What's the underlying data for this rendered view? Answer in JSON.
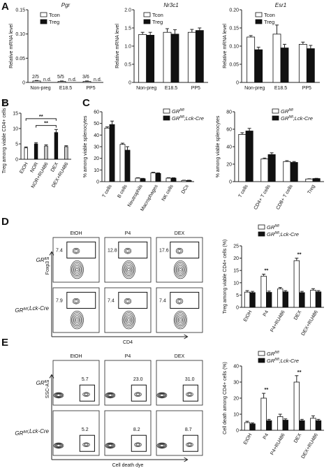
{
  "panels": {
    "A": "A",
    "B": "B",
    "C": "C",
    "D": "D",
    "E": "E"
  },
  "legend": {
    "tcon": "Tcon",
    "treg": "Treg",
    "gr": "GR",
    "gr_sup": "fl/fl",
    "grlck": "GR",
    "grlck_sup": "fl/fl",
    "grlck_suffix": ";Lck-Cre"
  },
  "colors": {
    "white": "#ffffff",
    "black": "#111111",
    "grey": "#aaaaaa",
    "lightgrey": "#c8c8c8"
  },
  "chart_data": [
    {
      "id": "A1",
      "type": "bar",
      "title": "Pgr",
      "ylabel": "Relative mRNA level",
      "ylim": [
        0,
        0.15
      ],
      "yticks": [
        "0",
        "0.05",
        "0.10",
        "0.15"
      ],
      "categories": [
        "Non-preg",
        "E18.5",
        "PP5"
      ],
      "series": [
        {
          "name": "Tcon",
          "values": [
            0.003,
            0.002,
            0.002
          ],
          "err": [
            0.001,
            0.001,
            0.001
          ]
        },
        {
          "name": "Treg",
          "values": [
            0,
            0,
            0
          ],
          "err": [
            0,
            0,
            0
          ]
        }
      ],
      "annotations": [
        "2/5",
        "5/5",
        "3/6",
        "n.d.",
        "n.d.",
        "n.d."
      ]
    },
    {
      "id": "A2",
      "type": "bar",
      "title": "Nr3c1",
      "ylabel": "Relative mRNA level",
      "ylim": [
        0,
        2.0
      ],
      "yticks": [
        "0",
        "0.5",
        "1.0",
        "1.5",
        "2.0"
      ],
      "categories": [
        "Non-preg",
        "E18.5",
        "PP5"
      ],
      "series": [
        {
          "name": "Tcon",
          "values": [
            1.32,
            1.38,
            1.38
          ],
          "err": [
            0.06,
            0.1,
            0.08
          ]
        },
        {
          "name": "Treg",
          "values": [
            1.3,
            1.33,
            1.43
          ],
          "err": [
            0.08,
            0.12,
            0.07
          ]
        }
      ]
    },
    {
      "id": "A3",
      "type": "bar",
      "title": "Esr1",
      "ylabel": "Relative mRNA level",
      "ylim": [
        0,
        0.2
      ],
      "yticks": [
        "0",
        "0.05",
        "0.10",
        "0.15",
        "0.20"
      ],
      "categories": [
        "Non-preg",
        "E18.5",
        "PP5"
      ],
      "series": [
        {
          "name": "Tcon",
          "values": [
            0.125,
            0.133,
            0.105
          ],
          "err": [
            0.004,
            0.025,
            0.006
          ]
        },
        {
          "name": "Treg",
          "values": [
            0.09,
            0.095,
            0.093
          ],
          "err": [
            0.007,
            0.01,
            0.009
          ]
        }
      ]
    },
    {
      "id": "B",
      "type": "bar",
      "ylabel": "Treg among viable CD4+ cells (%)",
      "ylim": [
        0,
        15
      ],
      "yticks": [
        "0",
        "5",
        "10",
        "15"
      ],
      "categories": [
        "EtOH",
        "NOR",
        "NOR+RU486",
        "DEX",
        "DEX+RU486"
      ],
      "values": [
        3.7,
        5.0,
        4.3,
        8.7,
        4.1
      ],
      "err": [
        0.3,
        0.4,
        0.4,
        1.0,
        0.3
      ],
      "significance": [
        "**",
        "**"
      ]
    },
    {
      "id": "C1",
      "type": "bar",
      "ylabel": "% among viable splenocytes",
      "ylim": [
        0,
        60
      ],
      "yticks": [
        "0",
        "10",
        "20",
        "30",
        "40",
        "50",
        "60"
      ],
      "categories": [
        "T cells",
        "B cells",
        "Neutrophils",
        "Macrophages",
        "NK cells",
        "DCs"
      ],
      "series": [
        {
          "name": "GR fl/fl",
          "values": [
            46,
            32,
            3,
            7.5,
            3,
            1
          ],
          "err": [
            1,
            1,
            0.3,
            0.5,
            0.3,
            0.2
          ]
        },
        {
          "name": "GR fl/fl;Lck-Cre",
          "values": [
            49,
            27,
            2.5,
            7,
            3,
            1
          ],
          "err": [
            3,
            3,
            0.3,
            0.5,
            0.3,
            0.2
          ]
        }
      ]
    },
    {
      "id": "C2",
      "type": "bar",
      "ylabel": "% among viable splenocytes",
      "ylim": [
        0,
        80
      ],
      "yticks": [
        "0",
        "20",
        "40",
        "60",
        "80"
      ],
      "categories": [
        "T cells",
        "CD4+ T cells",
        "CD8+ T cells",
        "Treg"
      ],
      "series": [
        {
          "name": "GR fl/fl",
          "values": [
            54,
            26,
            23,
            3
          ],
          "err": [
            2,
            1,
            1,
            0.3
          ]
        },
        {
          "name": "GR fl/fl;Lck-Cre",
          "values": [
            58,
            31,
            22,
            3.5
          ],
          "err": [
            3,
            2,
            1,
            0.3
          ]
        }
      ]
    },
    {
      "id": "D",
      "type": "bar",
      "ylabel": "Treg among viable CD4+ cells (%)",
      "ylim": [
        0,
        25
      ],
      "yticks": [
        "0",
        "5",
        "10",
        "15",
        "20",
        "25"
      ],
      "categories": [
        "EtOH",
        "P4",
        "P4+RU486",
        "DEX",
        "DEX+RU486"
      ],
      "series": [
        {
          "name": "GR fl/fl",
          "values": [
            6.2,
            12.7,
            7.5,
            19.0,
            7.0
          ],
          "err": [
            0.6,
            0.8,
            0.6,
            1.0,
            0.6
          ]
        },
        {
          "name": "GR fl/fl;Lck-Cre",
          "values": [
            6.0,
            6.1,
            6.3,
            6.0,
            6.3
          ],
          "err": [
            0.5,
            0.5,
            0.5,
            0.5,
            0.5
          ]
        }
      ],
      "significance": [
        "**",
        "**"
      ]
    },
    {
      "id": "E",
      "type": "bar",
      "ylabel": "Cell death among CD4+ cells (%)",
      "ylim": [
        0,
        40
      ],
      "yticks": [
        "0",
        "10",
        "20",
        "30",
        "40"
      ],
      "categories": [
        "EtOH",
        "P4",
        "P4+RU486",
        "DEX",
        "DEX+RU486"
      ],
      "series": [
        {
          "name": "GR fl/fl",
          "values": [
            4.8,
            20.0,
            8.5,
            30.0,
            7.5
          ],
          "err": [
            0.8,
            3,
            1.5,
            4,
            1.5
          ]
        },
        {
          "name": "GR fl/fl;Lck-Cre",
          "values": [
            4.0,
            6.0,
            6.3,
            6.0,
            6.0
          ],
          "err": [
            0.6,
            0.8,
            0.8,
            0.8,
            0.8
          ]
        }
      ],
      "significance": [
        "**",
        "**"
      ]
    }
  ],
  "flow_D": {
    "cols": [
      "EtOH",
      "P4",
      "DEX"
    ],
    "rows": [
      "GRfl/fl",
      "GRfl/fl;Lck-Cre"
    ],
    "values": [
      [
        "7.4",
        "12.8",
        "17.6"
      ],
      [
        "7.9",
        "7.4",
        "7.4"
      ]
    ],
    "xlabel": "CD4",
    "ylabel": "Foxp3"
  },
  "flow_E": {
    "cols": [
      "EtOH",
      "P4",
      "DEX"
    ],
    "rows": [
      "GRfl/fl",
      "GRfl/fl;Lck-Cre"
    ],
    "values": [
      [
        "5.7",
        "23.0",
        "31.0"
      ],
      [
        "5.2",
        "8.2",
        "8.7"
      ]
    ],
    "xlabel": "Cell death dye",
    "ylabel": "SSC-A"
  }
}
